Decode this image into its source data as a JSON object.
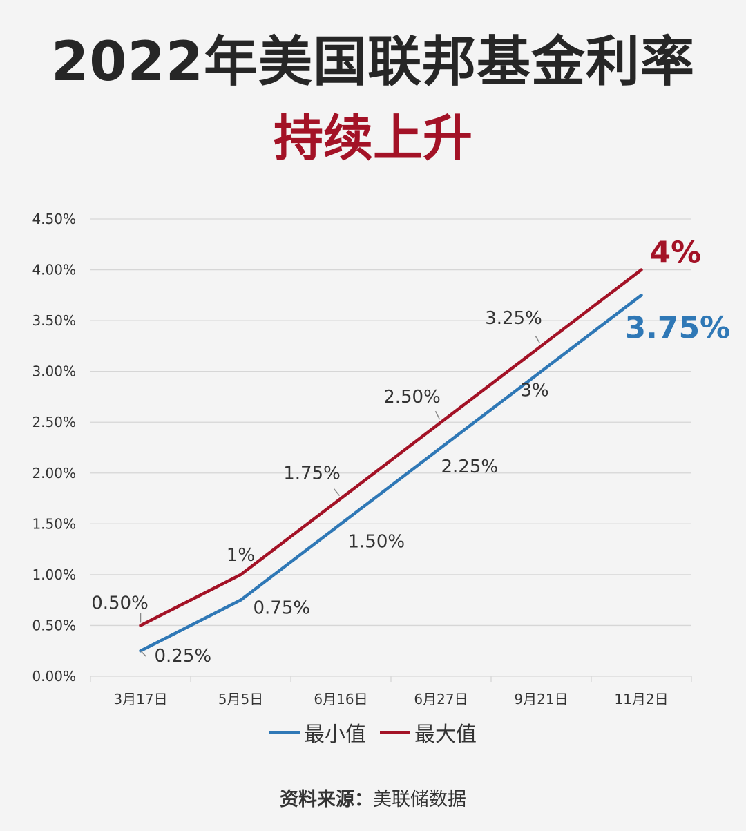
{
  "header": {
    "title": "2022年美国联邦基金利率",
    "subtitle": "持续上升"
  },
  "colors": {
    "min_series": "#2f78b6",
    "max_series": "#a31226",
    "grid": "#d6d6d6",
    "axis_text": "#333333"
  },
  "chart_data": {
    "type": "line",
    "categories": [
      "3月17日",
      "5月5日",
      "6月16日",
      "6月27日",
      "9月21日",
      "11月2日"
    ],
    "x": [
      0.5,
      1.5,
      2.5,
      3.5,
      4.5,
      5.5
    ],
    "series": [
      {
        "name": "最小值",
        "values": [
          0.25,
          0.75,
          1.5,
          2.25,
          3.0,
          3.75
        ],
        "labels": [
          "0.25%",
          "0.75%",
          "1.50%",
          "2.25%",
          "3%",
          "3.75%"
        ]
      },
      {
        "name": "最大值",
        "values": [
          0.5,
          1.0,
          1.75,
          2.5,
          3.25,
          4.0
        ],
        "labels": [
          "0.50%",
          "1%",
          "1.75%",
          "2.50%",
          "3.25%",
          "4%"
        ]
      }
    ],
    "yticks": [
      "0.00%",
      "0.50%",
      "1.00%",
      "1.50%",
      "2.00%",
      "2.50%",
      "3.00%",
      "3.50%",
      "4.00%",
      "4.50%"
    ],
    "ylim": [
      0,
      4.5
    ],
    "xlim": [
      0,
      6
    ],
    "grid": true,
    "legend": "bottom-center"
  },
  "footer": {
    "source_label": "资料来源：",
    "source_name": "美联储数据"
  }
}
